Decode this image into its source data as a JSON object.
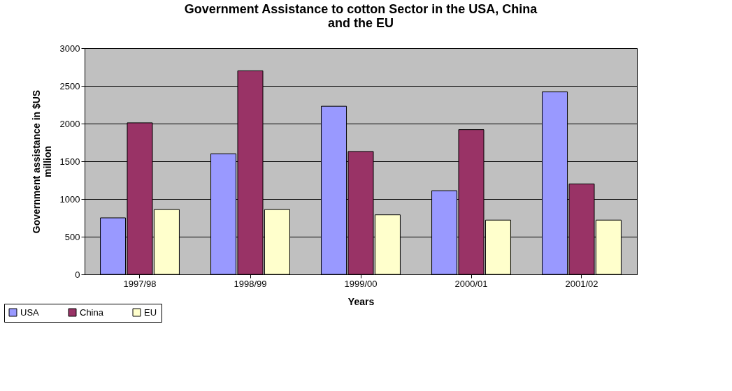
{
  "chart_data": {
    "type": "bar",
    "title": "Government Assistance to cotton Sector in the USA, China and the EU",
    "xlabel": "Years",
    "ylabel": "Government assistance in $US million",
    "categories": [
      "1997/98",
      "1998/99",
      "1999/00",
      "2000/01",
      "2001/02"
    ],
    "series": [
      {
        "name": "USA",
        "color": "#9999ff",
        "values": [
          750,
          1600,
          2230,
          1110,
          2420
        ]
      },
      {
        "name": "China",
        "color": "#993366",
        "values": [
          2010,
          2700,
          1630,
          1920,
          1200
        ]
      },
      {
        "name": "EU",
        "color": "#ffffcc",
        "values": [
          860,
          860,
          790,
          720,
          720
        ]
      }
    ],
    "ylim": [
      0,
      3000
    ],
    "yticks": [
      0,
      500,
      1000,
      1500,
      2000,
      2500,
      3000
    ],
    "grid": "y",
    "legend": "bottom left"
  }
}
